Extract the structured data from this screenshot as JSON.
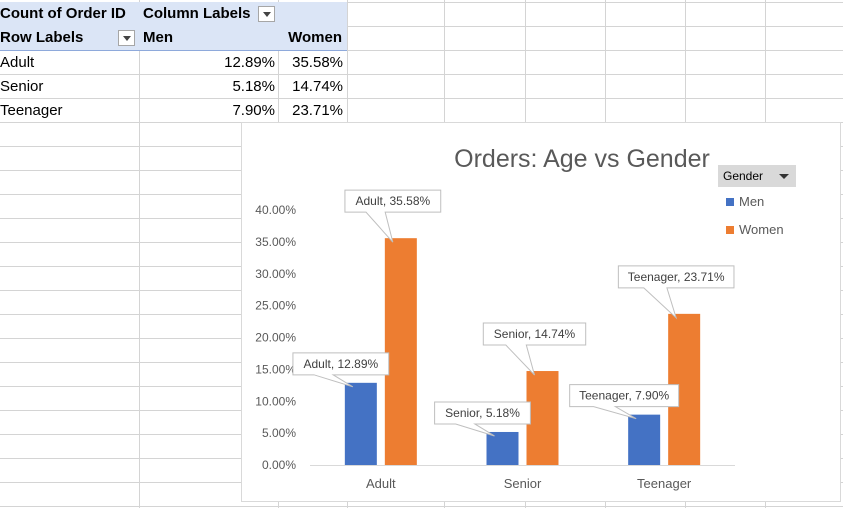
{
  "pivot": {
    "header_row1": {
      "corner": "Count of Order ID",
      "column_labels": "Column Labels"
    },
    "header_row2": {
      "row_labels": "Row Labels",
      "men": "Men",
      "women": "Women"
    },
    "rows": [
      {
        "label": "Adult",
        "men": "12.89%",
        "women": "35.58%"
      },
      {
        "label": "Senior",
        "men": "5.18%",
        "women": "14.74%"
      },
      {
        "label": "Teenager",
        "men": "7.90%",
        "women": "23.71%"
      }
    ]
  },
  "chart": {
    "legend_button": "Gender",
    "legend": [
      {
        "name": "Men",
        "color": "#4472c4"
      },
      {
        "name": "Women",
        "color": "#ed7d31"
      }
    ]
  },
  "chart_data": {
    "type": "bar",
    "title": "Orders: Age vs Gender",
    "categories": [
      "Adult",
      "Senior",
      "Teenager"
    ],
    "series": [
      {
        "name": "Men",
        "color": "#4472c4",
        "values": [
          12.89,
          5.18,
          7.9
        ],
        "labels": [
          "Adult, 12.89%",
          "Senior, 5.18%",
          "Teenager, 7.90%"
        ]
      },
      {
        "name": "Women",
        "color": "#ed7d31",
        "values": [
          35.58,
          14.74,
          23.71
        ],
        "labels": [
          "Adult, 35.58%",
          "Senior, 14.74%",
          "Teenager, 23.71%"
        ]
      }
    ],
    "yticks": [
      "0.00%",
      "5.00%",
      "10.00%",
      "15.00%",
      "20.00%",
      "25.00%",
      "30.00%",
      "35.00%",
      "40.00%"
    ],
    "ylim": [
      0,
      40
    ],
    "grid": false,
    "legend_position": "right"
  }
}
